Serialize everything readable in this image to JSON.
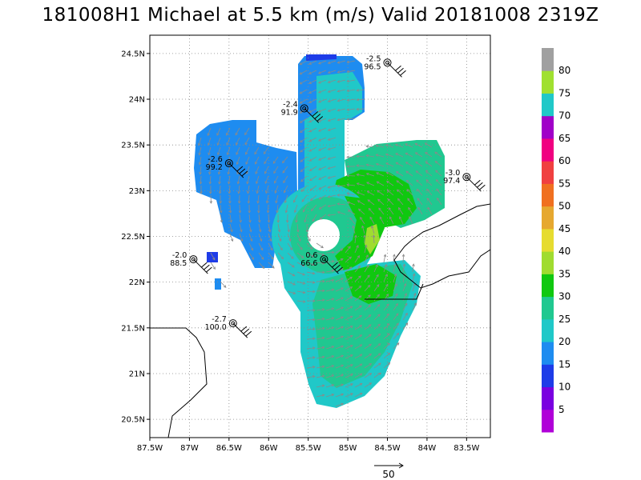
{
  "title": "181008H1 Michael at 5.5 km (m/s) Valid 20181008 2319Z",
  "map": {
    "lon_range": [
      -87.5,
      -83.2
    ],
    "lat_range": [
      20.3,
      24.7
    ],
    "x_ticks": [
      "87.5W",
      "87W",
      "86.5W",
      "86W",
      "85.5W",
      "85W",
      "84.5W",
      "84W",
      "83.5W"
    ],
    "y_ticks": [
      "24.5N",
      "24N",
      "23.5N",
      "23N",
      "22.5N",
      "22N",
      "21.5N",
      "21N",
      "20.5N"
    ],
    "grid": true
  },
  "colorbar": {
    "labels": [
      "5",
      "10",
      "15",
      "20",
      "25",
      "30",
      "35",
      "40",
      "45",
      "50",
      "55",
      "60",
      "65",
      "70",
      "75",
      "80"
    ],
    "colors": [
      "#b000d8",
      "#7a00e0",
      "#1e3ce8",
      "#1e8cf0",
      "#20c8c8",
      "#20c890",
      "#10c810",
      "#a0dc30",
      "#e6dc30",
      "#e6a830",
      "#f07020",
      "#f04040",
      "#f00080",
      "#a000c8",
      "#20c8c8",
      "#a0e030",
      "#a0a0a0"
    ]
  },
  "legend_vector": {
    "label": "50"
  },
  "stations": [
    {
      "id": "s1",
      "lon": -84.5,
      "lat": 24.4,
      "top": "-2.5",
      "bottom": "96.5"
    },
    {
      "id": "s2",
      "lon": -85.55,
      "lat": 23.9,
      "top": "-2.4",
      "bottom": "91.9"
    },
    {
      "id": "s3",
      "lon": -86.5,
      "lat": 23.3,
      "top": "-2.6",
      "bottom": "99.2"
    },
    {
      "id": "s4",
      "lon": -83.5,
      "lat": 23.15,
      "top": "-3.0",
      "bottom": "97.4"
    },
    {
      "id": "s5",
      "lon": -86.95,
      "lat": 22.25,
      "top": "-2.0",
      "bottom": "88.5"
    },
    {
      "id": "s6",
      "lon": -85.3,
      "lat": 22.25,
      "top": "0.6",
      "bottom": "66.6"
    },
    {
      "id": "s7",
      "lon": -86.45,
      "lat": 21.55,
      "top": "-2.7",
      "bottom": "100.0"
    }
  ],
  "storm": {
    "center_lon": -85.2,
    "center_lat": 22.55,
    "eye_radius_deg": 0.2
  }
}
